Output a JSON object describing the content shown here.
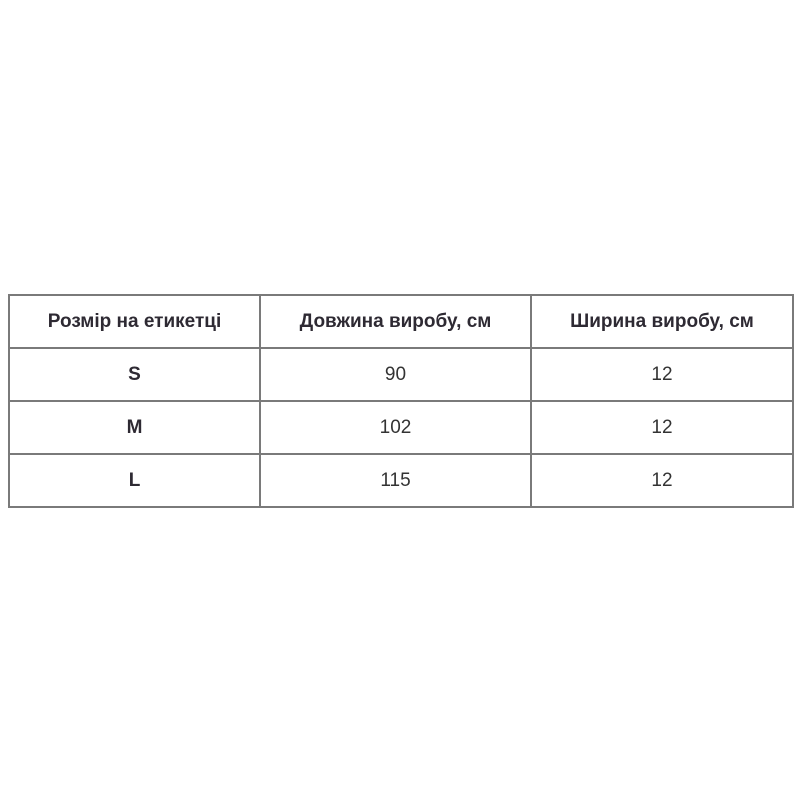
{
  "table": {
    "headers": [
      "Розмір на етикетці",
      "Довжина виробу, см",
      "Ширина виробу, см"
    ],
    "rows": [
      [
        "S",
        "90",
        "12"
      ],
      [
        "M",
        "102",
        "12"
      ],
      [
        "L",
        "115",
        "12"
      ]
    ]
  }
}
